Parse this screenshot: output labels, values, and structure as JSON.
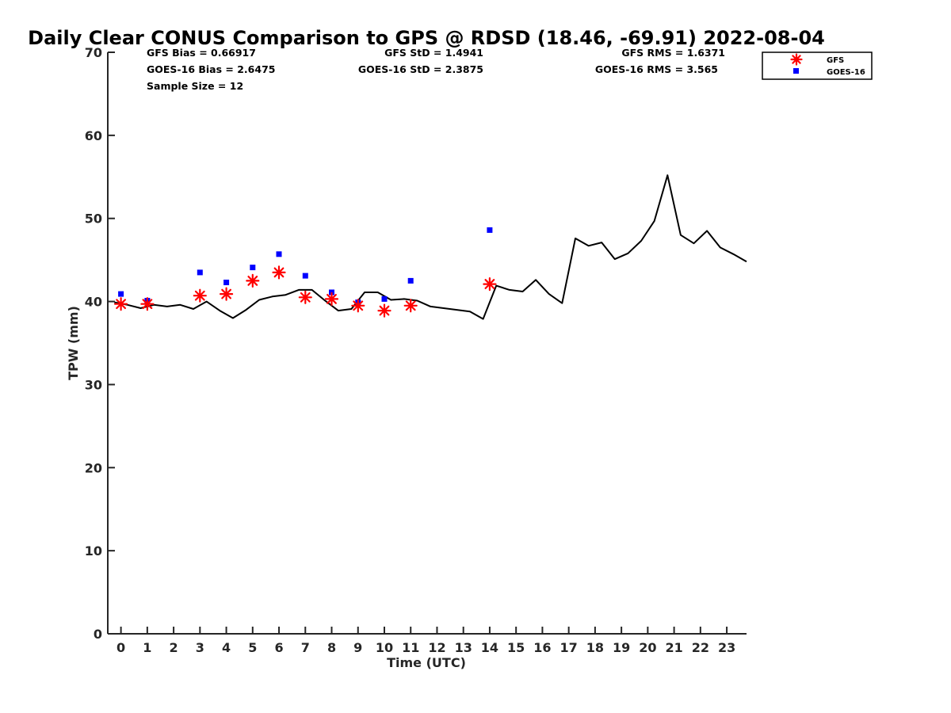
{
  "chart_data": {
    "type": "scatter",
    "title": "Daily Clear CONUS Comparison to GPS @ RDSD (18.46, -69.91) 2022-08-04",
    "xlabel": "Time (UTC)",
    "ylabel": "TPW (mm)",
    "xlim": [
      -0.5,
      23.75
    ],
    "ylim": [
      0,
      70
    ],
    "x_ticks": [
      0,
      1,
      2,
      3,
      4,
      5,
      6,
      7,
      8,
      9,
      10,
      11,
      12,
      13,
      14,
      15,
      16,
      17,
      18,
      19,
      20,
      21,
      22,
      23
    ],
    "y_ticks": [
      0,
      10,
      20,
      30,
      40,
      50,
      60,
      70
    ],
    "grid": false,
    "legend_position": "top-right",
    "stats": {
      "gfs_bias": "GFS Bias = 0.66917",
      "goes_bias": "GOES-16 Bias = 2.6475",
      "sample_size": "Sample Size = 12",
      "gfs_std": "GFS StD = 1.4941",
      "goes_std": "GOES-16 StD = 2.3875",
      "gfs_rms": "GFS RMS = 1.6371",
      "goes_rms": "GOES-16 RMS = 3.565"
    },
    "series": [
      {
        "name": "GFS",
        "marker": "asterisk",
        "color": "#ff0000",
        "x": [
          0,
          1,
          3,
          4,
          5,
          6,
          7,
          8,
          9,
          10,
          11,
          14
        ],
        "y": [
          39.7,
          39.7,
          40.7,
          40.9,
          42.5,
          43.5,
          40.5,
          40.3,
          39.5,
          38.9,
          39.5,
          42.1
        ]
      },
      {
        "name": "GOES-16",
        "marker": "square",
        "color": "#0000ff",
        "x": [
          0,
          1,
          3,
          4,
          5,
          6,
          7,
          8,
          9,
          10,
          11,
          14
        ],
        "y": [
          40.9,
          40.1,
          43.5,
          42.3,
          44.1,
          45.7,
          43.1,
          41.1,
          39.9,
          40.3,
          42.5,
          48.6
        ]
      },
      {
        "marker": "line",
        "color": "#000000",
        "x": [
          -0.25,
          0.25,
          0.75,
          1.25,
          1.75,
          2.25,
          2.75,
          3.25,
          3.75,
          4.25,
          4.75,
          5.25,
          5.75,
          6.25,
          6.75,
          7.25,
          7.75,
          8.25,
          8.75,
          9.25,
          9.75,
          10.25,
          10.75,
          11.25,
          11.75,
          13.25,
          13.75,
          14.25,
          14.75,
          15.25,
          15.75,
          16.25,
          16.75,
          17.25,
          17.75,
          18.25,
          18.75,
          19.25,
          19.75,
          20.25,
          20.75,
          21.25,
          21.75,
          22.25,
          22.75,
          23.25,
          23.75
        ],
        "y": [
          39.9,
          39.6,
          39.2,
          39.6,
          39.4,
          39.6,
          39.1,
          40.0,
          38.9,
          38.0,
          39.0,
          40.2,
          40.6,
          40.8,
          41.4,
          41.4,
          40.1,
          38.9,
          39.1,
          41.1,
          41.1,
          40.2,
          40.3,
          40.1,
          39.4,
          38.8,
          37.9,
          41.9,
          41.4,
          41.2,
          42.6,
          40.9,
          39.8,
          47.6,
          46.7,
          47.1,
          45.1,
          45.8,
          47.3,
          49.7,
          55.2,
          48.0,
          47.0,
          48.5,
          46.5,
          45.7,
          44.8
        ]
      }
    ]
  }
}
